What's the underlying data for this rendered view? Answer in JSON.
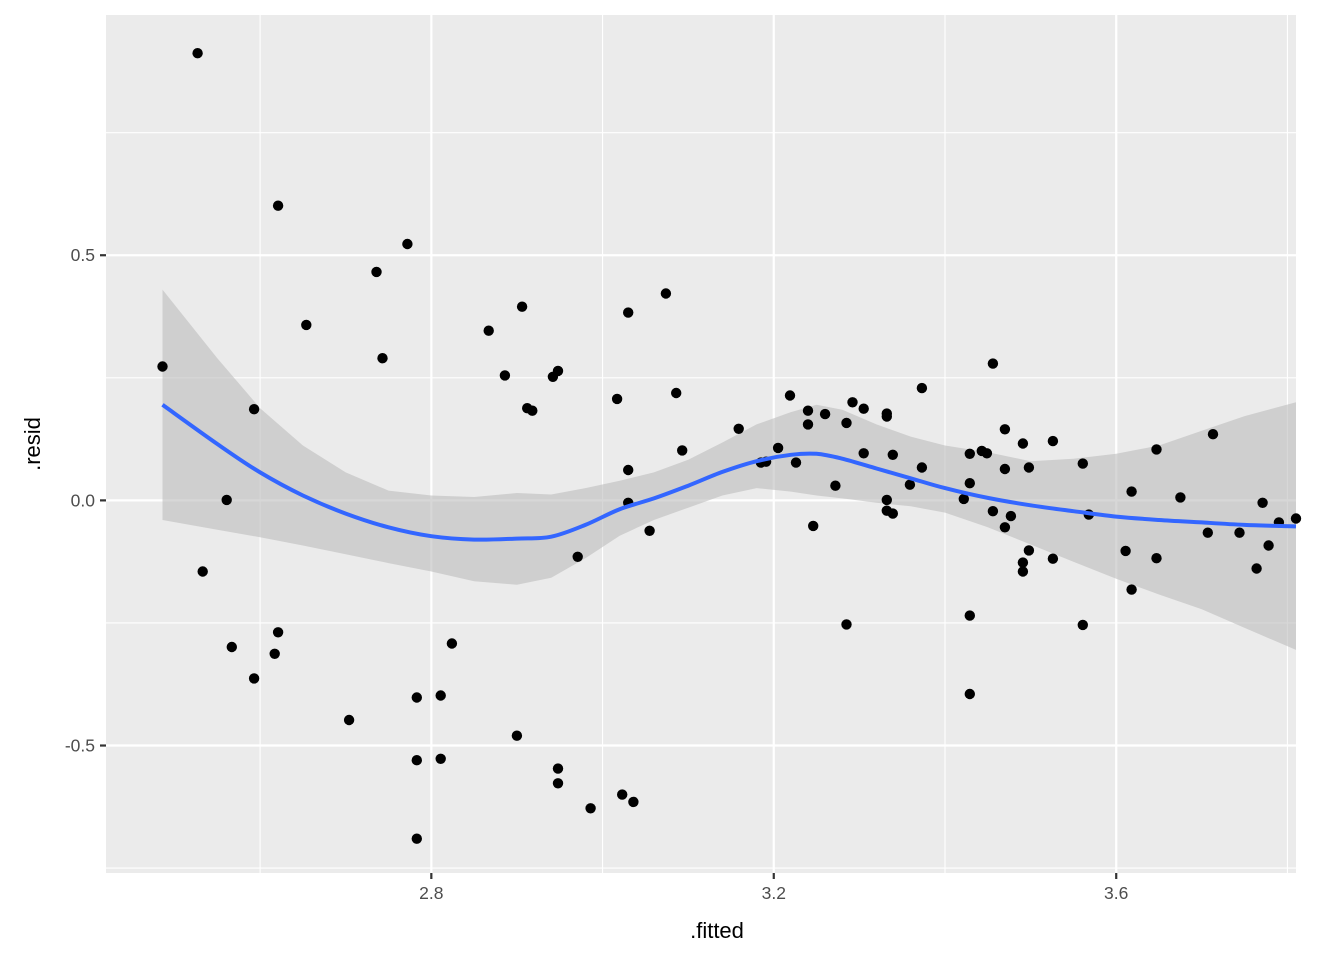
{
  "chart_data": {
    "type": "scatter",
    "title": "",
    "xlabel": ".fitted",
    "ylabel": ".resid",
    "xlim": [
      2.42,
      3.81
    ],
    "ylim": [
      -0.76,
      0.99
    ],
    "x_ticks": [
      2.8,
      3.2,
      3.6
    ],
    "x_tick_labels": [
      "2.8",
      "3.2",
      "3.6"
    ],
    "y_ticks": [
      -0.5,
      0.0,
      0.5
    ],
    "y_tick_labels": [
      "-0.5",
      "0.0",
      "0.5"
    ],
    "grid": true,
    "panel_background": "#ebebeb",
    "point_color": "#000000",
    "smooth_color": "#3366ff",
    "band_color": "#bdbdbd",
    "points": [
      [
        2.486,
        0.273
      ],
      [
        2.527,
        0.912
      ],
      [
        2.533,
        -0.145
      ],
      [
        2.561,
        0.001
      ],
      [
        2.567,
        -0.299
      ],
      [
        2.593,
        0.186
      ],
      [
        2.593,
        -0.363
      ],
      [
        2.617,
        -0.313
      ],
      [
        2.621,
        0.601
      ],
      [
        2.621,
        -0.269
      ],
      [
        2.654,
        0.358
      ],
      [
        2.704,
        -0.448
      ],
      [
        2.736,
        0.466
      ],
      [
        2.743,
        0.29
      ],
      [
        2.772,
        0.523
      ],
      [
        2.783,
        -0.402
      ],
      [
        2.783,
        -0.53
      ],
      [
        2.783,
        -0.69
      ],
      [
        2.811,
        -0.398
      ],
      [
        2.811,
        -0.527
      ],
      [
        2.824,
        -0.292
      ],
      [
        2.867,
        0.346
      ],
      [
        2.886,
        0.255
      ],
      [
        2.9,
        -0.48
      ],
      [
        2.906,
        0.395
      ],
      [
        2.912,
        0.188
      ],
      [
        2.918,
        0.183
      ],
      [
        2.942,
        0.252
      ],
      [
        2.948,
        0.264
      ],
      [
        2.948,
        -0.547
      ],
      [
        2.948,
        -0.577
      ],
      [
        2.971,
        -0.115
      ],
      [
        2.986,
        -0.628
      ],
      [
        3.017,
        0.207
      ],
      [
        3.023,
        -0.6
      ],
      [
        3.03,
        0.383
      ],
      [
        3.03,
        0.062
      ],
      [
        3.03,
        -0.005
      ],
      [
        3.036,
        -0.615
      ],
      [
        3.055,
        -0.062
      ],
      [
        3.074,
        0.422
      ],
      [
        3.086,
        0.219
      ],
      [
        3.093,
        0.102
      ],
      [
        3.159,
        0.146
      ],
      [
        3.185,
        0.077
      ],
      [
        3.191,
        0.079
      ],
      [
        3.205,
        0.107
      ],
      [
        3.219,
        0.214
      ],
      [
        3.226,
        0.077
      ],
      [
        3.24,
        0.183
      ],
      [
        3.24,
        0.155
      ],
      [
        3.246,
        -0.052
      ],
      [
        3.26,
        0.176
      ],
      [
        3.272,
        0.03
      ],
      [
        3.285,
        0.158
      ],
      [
        3.285,
        -0.253
      ],
      [
        3.292,
        0.2
      ],
      [
        3.305,
        0.096
      ],
      [
        3.305,
        0.187
      ],
      [
        3.332,
        0.177
      ],
      [
        3.332,
        0.171
      ],
      [
        3.332,
        0.001
      ],
      [
        3.332,
        -0.021
      ],
      [
        3.339,
        -0.027
      ],
      [
        3.339,
        0.093
      ],
      [
        3.359,
        0.032
      ],
      [
        3.373,
        0.067
      ],
      [
        3.373,
        0.229
      ],
      [
        3.422,
        0.003
      ],
      [
        3.429,
        0.095
      ],
      [
        3.429,
        0.035
      ],
      [
        3.429,
        -0.235
      ],
      [
        3.429,
        -0.395
      ],
      [
        3.443,
        0.101
      ],
      [
        3.449,
        0.096
      ],
      [
        3.456,
        0.279
      ],
      [
        3.456,
        -0.022
      ],
      [
        3.47,
        0.145
      ],
      [
        3.47,
        0.064
      ],
      [
        3.47,
        -0.055
      ],
      [
        3.477,
        -0.032
      ],
      [
        3.491,
        0.116
      ],
      [
        3.491,
        -0.127
      ],
      [
        3.491,
        -0.145
      ],
      [
        3.498,
        0.067
      ],
      [
        3.498,
        -0.102
      ],
      [
        3.526,
        0.121
      ],
      [
        3.526,
        -0.119
      ],
      [
        3.561,
        0.075
      ],
      [
        3.561,
        -0.254
      ],
      [
        3.568,
        -0.029
      ],
      [
        3.611,
        -0.103
      ],
      [
        3.618,
        0.018
      ],
      [
        3.618,
        -0.182
      ],
      [
        3.647,
        0.104
      ],
      [
        3.647,
        -0.118
      ],
      [
        3.675,
        0.006
      ],
      [
        3.707,
        -0.066
      ],
      [
        3.713,
        0.135
      ],
      [
        3.744,
        -0.066
      ],
      [
        3.764,
        -0.139
      ],
      [
        3.771,
        -0.005
      ],
      [
        3.778,
        -0.092
      ],
      [
        3.79,
        -0.045
      ],
      [
        3.81,
        -0.037
      ]
    ],
    "smooth": {
      "x": [
        2.486,
        2.55,
        2.6,
        2.65,
        2.7,
        2.75,
        2.8,
        2.85,
        2.9,
        2.94,
        2.98,
        3.02,
        3.06,
        3.1,
        3.14,
        3.18,
        3.22,
        3.25,
        3.28,
        3.32,
        3.36,
        3.4,
        3.45,
        3.5,
        3.55,
        3.6,
        3.65,
        3.7,
        3.75,
        3.81
      ],
      "y": [
        0.195,
        0.115,
        0.057,
        0.01,
        -0.027,
        -0.055,
        -0.073,
        -0.08,
        -0.078,
        -0.074,
        -0.05,
        -0.018,
        0.004,
        0.03,
        0.058,
        0.08,
        0.093,
        0.095,
        0.085,
        0.065,
        0.045,
        0.025,
        0.005,
        -0.01,
        -0.022,
        -0.033,
        -0.04,
        -0.045,
        -0.05,
        -0.053
      ],
      "lower": [
        -0.04,
        -0.06,
        -0.075,
        -0.092,
        -0.11,
        -0.128,
        -0.145,
        -0.165,
        -0.172,
        -0.158,
        -0.118,
        -0.072,
        -0.04,
        -0.015,
        0.01,
        0.025,
        0.018,
        0.01,
        0.004,
        -0.005,
        -0.012,
        -0.025,
        -0.055,
        -0.09,
        -0.125,
        -0.16,
        -0.192,
        -0.222,
        -0.26,
        -0.305
      ],
      "upper": [
        0.43,
        0.29,
        0.188,
        0.112,
        0.057,
        0.02,
        0.01,
        0.007,
        0.015,
        0.012,
        0.025,
        0.04,
        0.057,
        0.083,
        0.118,
        0.155,
        0.18,
        0.195,
        0.185,
        0.155,
        0.13,
        0.112,
        0.098,
        0.08,
        0.085,
        0.095,
        0.112,
        0.142,
        0.172,
        0.2
      ]
    }
  }
}
